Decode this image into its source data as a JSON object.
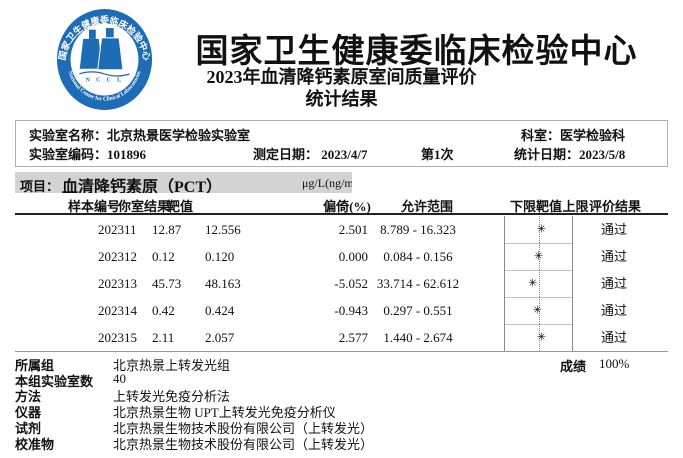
{
  "header": {
    "org_name": "国家卫生健康委临床检验中心",
    "report_title": "2023年血清降钙素原室间质量评价",
    "report_subtitle": "统计结果",
    "logo": {
      "top_text": "国家卫生健康委临床检验中心",
      "bottom_text": "National Center for Clinical Laboratories",
      "letters": "N C C L",
      "color": "#1d6cb5"
    }
  },
  "lab_info": {
    "lab_name_label": "实验室名称：",
    "lab_name": "北京热景医学检验实验室",
    "lab_code_label": "实验室编码：",
    "lab_code": "101896",
    "test_date_label": "测定日期：",
    "test_date": "2023/4/7",
    "round": "第1次",
    "department_label": "科室：",
    "department": "医学检验科",
    "stat_date_label": "统计日期：",
    "stat_date": "2023/5/8"
  },
  "project": {
    "label": "项目：",
    "name": "血清降钙素原（PCT）",
    "unit": "μg/L(ng/m"
  },
  "results_table": {
    "columns": [
      "样本编号",
      "你室结果",
      "靶值",
      "偏倚(%)",
      "允许范围",
      "下限",
      "靶值",
      "上限",
      "评价结果"
    ],
    "marker_glyph": "✳",
    "rows": [
      {
        "sample_id": "202311",
        "result": "12.87",
        "target": "12.556",
        "bias": "2.501",
        "range": "8.789 - 16.323",
        "marker_pos": 54.2,
        "evaluation": "通过"
      },
      {
        "sample_id": "202312",
        "result": "0.12",
        "target": "0.120",
        "bias": "0.000",
        "range": "0.084 - 0.156",
        "marker_pos": 50.0,
        "evaluation": "通过"
      },
      {
        "sample_id": "202313",
        "result": "45.73",
        "target": "48.163",
        "bias": "-5.052",
        "range": "33.714 - 62.612",
        "marker_pos": 41.6,
        "evaluation": "通过"
      },
      {
        "sample_id": "202314",
        "result": "0.42",
        "target": "0.424",
        "bias": "-0.943",
        "range": "0.297 - 0.551",
        "marker_pos": 48.4,
        "evaluation": "通过"
      },
      {
        "sample_id": "202315",
        "result": "2.11",
        "target": "2.057",
        "bias": "2.577",
        "range": "1.440 - 2.674",
        "marker_pos": 54.3,
        "evaluation": "通过"
      }
    ]
  },
  "summary": {
    "score_label": "成绩",
    "score": "100%",
    "fields": [
      {
        "label": "所属组",
        "value": "北京热景上转发光组"
      },
      {
        "label": "本组实验室数",
        "value": "40"
      },
      {
        "label": "方法",
        "value": "上转发光免疫分析法"
      },
      {
        "label": "仪器",
        "value": "北京热景生物 UPT上转发光免疫分析仪"
      },
      {
        "label": "试剂",
        "value": "北京热景生物技术股份有限公司（上转发光）"
      },
      {
        "label": "校准物",
        "value": "北京热景生物技术股份有限公司（上转发光）"
      }
    ]
  }
}
